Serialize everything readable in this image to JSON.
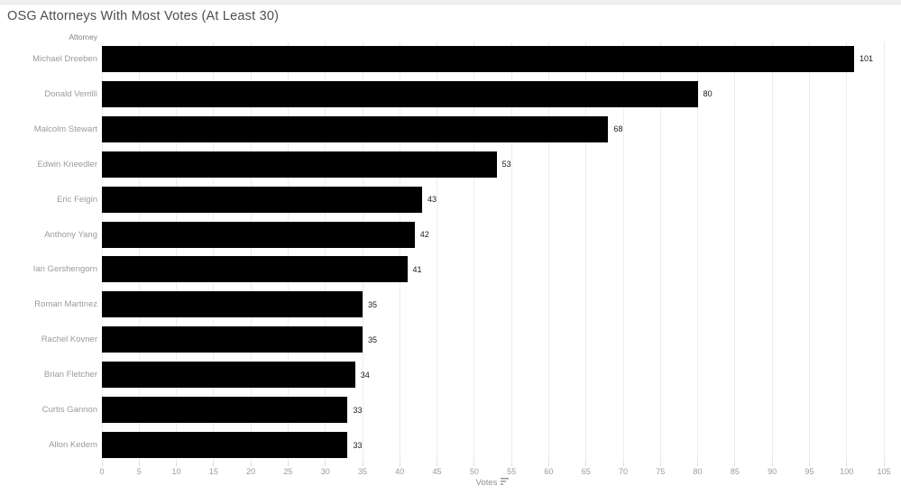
{
  "page": {
    "title": "OSG Attorneys With Most Votes (At Least 30)",
    "column_header": "Attorney"
  },
  "axis": {
    "label": "Votes",
    "sort_icon": "sort-descending-icon"
  },
  "colors": {
    "bar": "#000000",
    "title_text": "#4e4e4e",
    "category_text": "#9b9b9b",
    "tick_text": "#9b9b9b",
    "value_text": "#1a1a1a",
    "gridline": "#ececec",
    "top_strip": "#f0f0f0"
  },
  "chart_data": {
    "type": "bar",
    "orientation": "horizontal",
    "title": "OSG Attorneys With Most Votes (At Least 30)",
    "xlabel": "Votes",
    "ylabel": "Attorney",
    "categories": [
      "Michael Dreeben",
      "Donald Verrilli",
      "Malcolm Stewart",
      "Edwin Kneedler",
      "Eric Feigin",
      "Anthony Yang",
      "Ian Gershengorn",
      "Roman Martinez",
      "Rachel Kovner",
      "Brian Fletcher",
      "Curtis Gannon",
      "Allon Kedem"
    ],
    "values": [
      101,
      80,
      68,
      53,
      43,
      42,
      41,
      35,
      35,
      34,
      33,
      33
    ],
    "xlim": [
      0,
      105
    ],
    "xticks": [
      0,
      5,
      10,
      15,
      20,
      25,
      30,
      35,
      40,
      45,
      50,
      55,
      60,
      65,
      70,
      75,
      80,
      85,
      90,
      95,
      100,
      105
    ],
    "grid": true,
    "legend_position": "none",
    "sort": "descending"
  }
}
